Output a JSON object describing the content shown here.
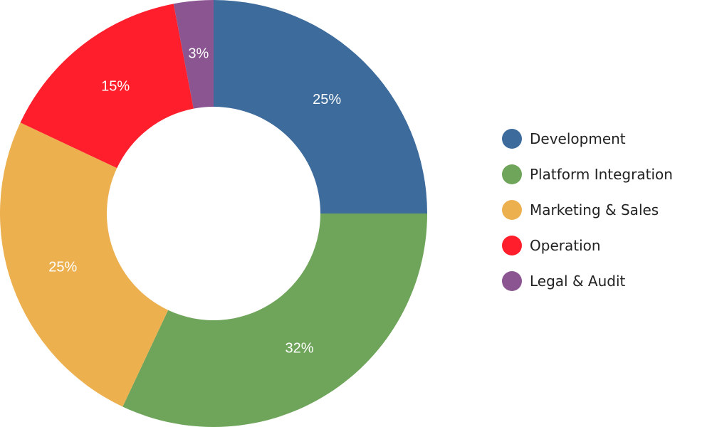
{
  "chart_data": {
    "type": "pie",
    "variant": "donut",
    "categories": [
      "Development",
      "Platform Integration",
      "Marketing & Sales",
      "Operation",
      "Legal & Audit"
    ],
    "values": [
      25,
      32,
      25,
      15,
      3
    ],
    "labels": [
      "25%",
      "32%",
      "25%",
      "15%",
      "3%"
    ],
    "colors": [
      "#3d6b9c",
      "#6fa55a",
      "#ecb04f",
      "#ff1f2c",
      "#8a5590"
    ],
    "title": "",
    "legend_position": "right"
  }
}
